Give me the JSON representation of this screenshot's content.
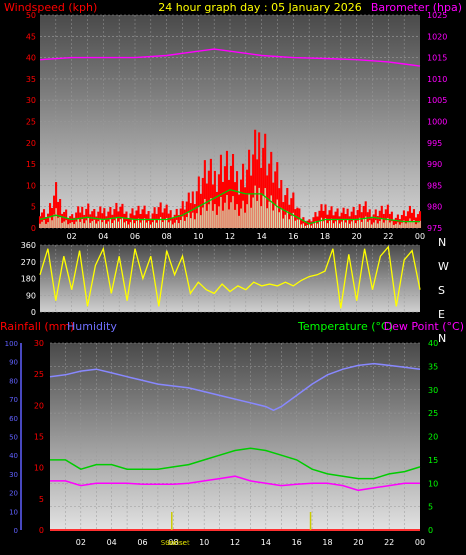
{
  "header": {
    "left_label": "Windspeed (kph)",
    "title": "24 hour graph day : 05 January 2026",
    "right_label": "Barometer (hpa)"
  },
  "lower_header": {
    "rainfall_label": "Rainfall (mm)",
    "humidity_label": "Humidity",
    "temperature_label": "Temperature (°C)",
    "dewpoint_label": "Dew Point (°C)"
  },
  "colors": {
    "windspeed": "#ff0000",
    "gust": "#ff2020",
    "avg_wind": "#00cc00",
    "wind_light": "#ccffcc",
    "barometer": "#ff00ff",
    "direction": "#ffff00",
    "rainfall": "#ff3030",
    "humidity": "#8888ff",
    "temperature": "#00cc00",
    "dewpoint": "#ff00ff",
    "sun_marker": "#cccc00",
    "axis_text_red": "#ff0000",
    "axis_text_mag": "#ff00ff",
    "axis_text_blue": "#6060ff",
    "axis_text_green": "#00ff00"
  },
  "chart_data": [
    {
      "type": "line",
      "name": "wind_and_pressure",
      "x_ticks": [
        "02",
        "04",
        "06",
        "08",
        "10",
        "12",
        "14",
        "16",
        "18",
        "20",
        "22",
        "00"
      ],
      "ylabel_left": "Windspeed (kph)",
      "ylabel_right": "Barometer (hpa)",
      "y_left_ticks": [
        0,
        5,
        10,
        15,
        20,
        25,
        30,
        35,
        40,
        45,
        50
      ],
      "y_right_ticks": [
        975,
        980,
        985,
        990,
        995,
        1000,
        1005,
        1010,
        1015,
        1020,
        1025
      ],
      "ylim_left": [
        0,
        50
      ],
      "ylim_right": [
        975,
        1025
      ],
      "series": [
        {
          "name": "Barometer (hpa)",
          "axis": "right",
          "x_hours": [
            0,
            2,
            4,
            6,
            8,
            9,
            10,
            11,
            12,
            13,
            14,
            16,
            18,
            20,
            22,
            23,
            24
          ],
          "values": [
            1014.5,
            1015,
            1015,
            1015,
            1015.5,
            1016,
            1016.5,
            1017,
            1016.5,
            1016,
            1015.5,
            1015,
            1014.8,
            1014.5,
            1014,
            1013.5,
            1013
          ]
        },
        {
          "name": "Windspeed (kph)",
          "axis": "left",
          "x_hours": [
            0,
            0.5,
            1,
            1.5,
            2,
            2.5,
            3,
            3.5,
            4,
            4.5,
            5,
            5.5,
            6,
            6.5,
            7,
            7.5,
            8,
            8.5,
            9,
            9.5,
            10,
            10.5,
            11,
            11.5,
            12,
            12.5,
            13,
            13.5,
            14,
            14.5,
            15,
            15.5,
            16,
            16.5,
            17,
            17.5,
            18,
            18.5,
            19,
            19.5,
            20,
            20.5,
            21,
            21.5,
            22,
            22.5,
            23,
            23.5,
            24
          ],
          "values": [
            5,
            4,
            10,
            5,
            3,
            5,
            6,
            4,
            5,
            5,
            6,
            4,
            5,
            5,
            4,
            6,
            5,
            4,
            6,
            8,
            12,
            16,
            14,
            18,
            17,
            14,
            16,
            20,
            26,
            18,
            14,
            10,
            8,
            3,
            2,
            4,
            6,
            5,
            4,
            5,
            5,
            6,
            4,
            5,
            5,
            3,
            4,
            5,
            4
          ]
        },
        {
          "name": "Average Wind (kph)",
          "axis": "left",
          "x_hours": [
            0,
            1,
            2,
            3,
            4,
            5,
            6,
            7,
            8,
            9,
            10,
            11,
            12,
            13,
            14,
            15,
            16,
            17,
            18,
            19,
            20,
            21,
            22,
            23,
            24
          ],
          "values": [
            2,
            3,
            2,
            2.5,
            2,
            2.5,
            2,
            2,
            2,
            3,
            5,
            7,
            9,
            8,
            8,
            5,
            3,
            1,
            2,
            2,
            2,
            2.5,
            2,
            1.5,
            1.5
          ]
        }
      ]
    },
    {
      "type": "line",
      "name": "wind_direction",
      "x_ticks": [],
      "y_left_ticks": [
        0,
        90,
        180,
        270,
        360
      ],
      "compass_labels": [
        "N",
        "W",
        "S",
        "E",
        "N"
      ],
      "ylim": [
        0,
        360
      ],
      "series": [
        {
          "name": "Wind Direction",
          "x_hours": [
            0,
            0.5,
            1,
            1.5,
            2,
            2.5,
            3,
            3.5,
            4,
            4.5,
            5,
            5.5,
            6,
            6.5,
            7,
            7.5,
            8,
            8.5,
            9,
            9.5,
            10,
            10.5,
            11,
            11.5,
            12,
            12.5,
            13,
            13.5,
            14,
            14.5,
            15,
            15.5,
            16,
            16.5,
            17,
            17.5,
            18,
            18.5,
            19,
            19.5,
            20,
            20.5,
            21,
            21.5,
            22,
            22.5,
            23,
            23.5,
            24
          ],
          "values": [
            200,
            340,
            60,
            300,
            120,
            330,
            30,
            250,
            340,
            100,
            300,
            60,
            340,
            180,
            300,
            30,
            330,
            200,
            300,
            100,
            160,
            120,
            100,
            150,
            110,
            140,
            120,
            160,
            140,
            150,
            140,
            160,
            140,
            170,
            190,
            200,
            220,
            340,
            20,
            310,
            60,
            340,
            120,
            300,
            350,
            30,
            280,
            330,
            120
          ]
        }
      ]
    },
    {
      "type": "line",
      "name": "temperature_humidity_rain",
      "x_ticks": [
        "02",
        "04",
        "06",
        "08",
        "10",
        "12",
        "14",
        "16",
        "18",
        "20",
        "22",
        "00"
      ],
      "x_annotations": [
        "Sunrise",
        "Sunset"
      ],
      "y_humidity_ticks": [
        0,
        10,
        20,
        30,
        40,
        50,
        60,
        70,
        80,
        90,
        100
      ],
      "y_rain_ticks": [
        0,
        5,
        10,
        15,
        20,
        25,
        30
      ],
      "y_temp_ticks": [
        0,
        5,
        10,
        15,
        20,
        25,
        30,
        35,
        40
      ],
      "ylim_humidity": [
        0,
        100
      ],
      "ylim_rain": [
        0,
        30
      ],
      "ylim_temp": [
        0,
        40
      ],
      "series": [
        {
          "name": "Humidity",
          "axis": "humidity",
          "x_hours": [
            0,
            1,
            2,
            3,
            4,
            5,
            6,
            7,
            8,
            9,
            10,
            11,
            12,
            13,
            14,
            14.5,
            15,
            16,
            17,
            18,
            19,
            20,
            21,
            22,
            23,
            24
          ],
          "values": [
            82,
            83,
            85,
            86,
            84,
            82,
            80,
            78,
            77,
            76,
            74,
            72,
            70,
            68,
            66,
            64,
            66,
            72,
            78,
            83,
            86,
            88,
            89,
            88,
            87,
            86
          ]
        },
        {
          "name": "Temperature (°C)",
          "axis": "temp",
          "x_hours": [
            0,
            1,
            2,
            3,
            4,
            5,
            6,
            7,
            8,
            9,
            10,
            11,
            12,
            13,
            14,
            15,
            16,
            17,
            18,
            19,
            20,
            21,
            22,
            23,
            24
          ],
          "values": [
            15,
            15,
            13,
            14,
            14,
            13,
            13,
            13,
            13.5,
            14,
            15,
            16,
            17,
            17.5,
            17,
            16,
            15,
            13,
            12,
            11.5,
            11,
            11,
            12,
            12.5,
            13.5
          ]
        },
        {
          "name": "Dew Point (°C)",
          "axis": "temp",
          "x_hours": [
            0,
            1,
            2,
            3,
            4,
            5,
            6,
            7,
            8,
            9,
            10,
            11,
            12,
            13,
            14,
            15,
            16,
            17,
            18,
            19,
            20,
            21,
            22,
            23,
            24
          ],
          "values": [
            10.5,
            10.5,
            9.5,
            10,
            10,
            10,
            9.8,
            9.8,
            9.8,
            10,
            10.5,
            11,
            11.5,
            10.5,
            10,
            9.5,
            9.8,
            10,
            10,
            9.5,
            8.5,
            9,
            9.5,
            10,
            10
          ]
        },
        {
          "name": "Rainfall (mm)",
          "axis": "rain",
          "x_hours": [
            0,
            24
          ],
          "values": [
            0,
            0
          ]
        }
      ],
      "sun_events": [
        {
          "label": "Sunrise",
          "hour": 7.9
        },
        {
          "label": "Sunset",
          "hour": 16.9
        }
      ]
    }
  ]
}
